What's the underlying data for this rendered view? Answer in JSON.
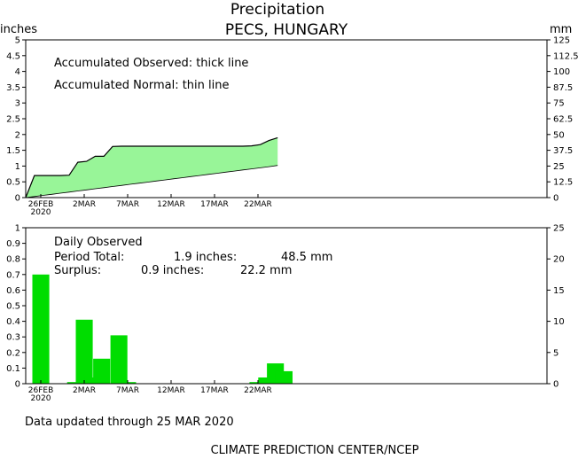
{
  "header": {
    "title": "Precipitation",
    "subtitle": "PECS, HUNGARY"
  },
  "footer": {
    "updated": "Data updated through 25 MAR 2020",
    "credit": "CLIMATE PREDICTION CENTER/NCEP"
  },
  "chart_data": [
    {
      "type": "area",
      "panel": "accumulated",
      "ylabel_left": "inches",
      "ylabel_right": "mm",
      "ylim": [
        0,
        5
      ],
      "yticks_left": [
        "0",
        "0.5",
        "1",
        "1.5",
        "2",
        "2.5",
        "3",
        "3.5",
        "4",
        "4.5",
        "5"
      ],
      "yticks_right": [
        "0",
        "12.5",
        "25",
        "37.5",
        "50",
        "62.5",
        "75",
        "87.5",
        "100",
        "112.5",
        "125"
      ],
      "x_ticks": [
        {
          "label": "26FEB",
          "sub": "2020",
          "day": 0
        },
        {
          "label": "2MAR",
          "sub": "",
          "day": 5
        },
        {
          "label": "7MAR",
          "sub": "",
          "day": 10
        },
        {
          "label": "12MAR",
          "sub": "",
          "day": 15
        },
        {
          "label": "17MAR",
          "sub": "",
          "day": 20
        },
        {
          "label": "22MAR",
          "sub": "",
          "day": 25
        }
      ],
      "annotations": [
        "Accumulated Observed: thick line",
        "Accumulated Normal: thin line"
      ],
      "fill_color": "#98f598",
      "dates": [
        "25FEB",
        "26FEB",
        "27FEB",
        "28FEB",
        "29FEB",
        "1MAR",
        "2MAR",
        "3MAR",
        "4MAR",
        "5MAR",
        "6MAR",
        "7MAR",
        "8MAR",
        "9MAR",
        "10MAR",
        "11MAR",
        "12MAR",
        "13MAR",
        "14MAR",
        "15MAR",
        "16MAR",
        "17MAR",
        "18MAR",
        "19MAR",
        "20MAR",
        "21MAR",
        "22MAR",
        "23MAR",
        "24MAR",
        "25MAR"
      ],
      "series": [
        {
          "name": "Accumulated Observed",
          "values": [
            0,
            0.7,
            0.7,
            0.7,
            0.7,
            0.71,
            1.12,
            1.15,
            1.31,
            1.31,
            1.62,
            1.63,
            1.63,
            1.63,
            1.63,
            1.63,
            1.63,
            1.63,
            1.63,
            1.63,
            1.63,
            1.63,
            1.63,
            1.63,
            1.63,
            1.63,
            1.64,
            1.68,
            1.81,
            1.9
          ]
        },
        {
          "name": "Accumulated Normal",
          "values": [
            0,
            0.035,
            0.07,
            0.105,
            0.14,
            0.175,
            0.21,
            0.245,
            0.28,
            0.315,
            0.35,
            0.385,
            0.42,
            0.455,
            0.49,
            0.525,
            0.56,
            0.595,
            0.63,
            0.665,
            0.7,
            0.735,
            0.77,
            0.805,
            0.84,
            0.875,
            0.91,
            0.945,
            0.98,
            1.02
          ]
        }
      ]
    },
    {
      "type": "bar",
      "panel": "daily",
      "ylim": [
        0,
        1
      ],
      "yticks_left": [
        "0",
        "0.1",
        "0.2",
        "0.3",
        "0.4",
        "0.5",
        "0.6",
        "0.7",
        "0.8",
        "0.9",
        "1"
      ],
      "yticks_right": [
        "0",
        "5",
        "10",
        "15",
        "20",
        "25"
      ],
      "x_ticks": [
        {
          "label": "26FEB",
          "sub": "2020",
          "day": 0
        },
        {
          "label": "2MAR",
          "sub": "",
          "day": 5
        },
        {
          "label": "7MAR",
          "sub": "",
          "day": 10
        },
        {
          "label": "12MAR",
          "sub": "",
          "day": 15
        },
        {
          "label": "17MAR",
          "sub": "",
          "day": 20
        },
        {
          "label": "22MAR",
          "sub": "",
          "day": 25
        }
      ],
      "annotations": {
        "heading": "Daily Observed",
        "total_label": "Period Total:",
        "total_in": "1.9 inches:",
        "total_mm": "48.5 mm",
        "surplus_label": "Surplus:",
        "surplus_in": "0.9 inches:",
        "surplus_mm": "22.2 mm"
      },
      "bar_color": "#00dd00",
      "categories": [
        "26FEB",
        "27FEB",
        "28FEB",
        "29FEB",
        "1MAR",
        "2MAR",
        "3MAR",
        "4MAR",
        "5MAR",
        "6MAR",
        "7MAR",
        "8MAR",
        "9MAR",
        "10MAR",
        "11MAR",
        "12MAR",
        "13MAR",
        "14MAR",
        "15MAR",
        "16MAR",
        "17MAR",
        "18MAR",
        "19MAR",
        "20MAR",
        "21MAR",
        "22MAR",
        "23MAR",
        "24MAR",
        "25MAR"
      ],
      "values": [
        0.7,
        0,
        0,
        0,
        0.01,
        0.41,
        0.04,
        0.16,
        0,
        0.31,
        0.01,
        0,
        0,
        0,
        0,
        0,
        0,
        0,
        0,
        0,
        0,
        0,
        0,
        0,
        0,
        0.01,
        0.04,
        0.13,
        0.08
      ]
    }
  ]
}
